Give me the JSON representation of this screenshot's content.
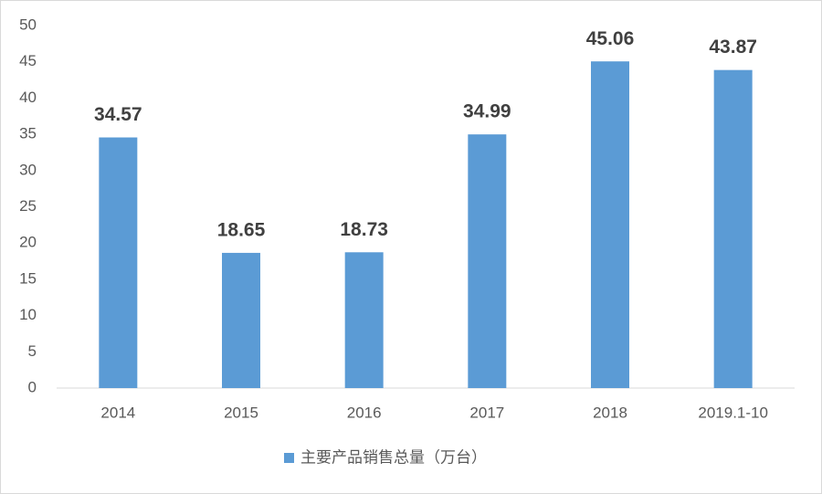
{
  "chart_data": {
    "type": "bar",
    "categories": [
      "2014",
      "2015",
      "2016",
      "2017",
      "2018",
      "2019.1-10"
    ],
    "series": [
      {
        "name": "主要产品销售总量（万台）",
        "color": "#5b9bd5",
        "values": [
          34.57,
          18.65,
          18.73,
          34.99,
          45.06,
          43.87
        ]
      }
    ],
    "ylim": [
      0,
      50
    ],
    "yticks": [
      0,
      5,
      10,
      15,
      20,
      25,
      30,
      35,
      40,
      45,
      50
    ],
    "grid": false,
    "legend": "bottom",
    "data_labels": true
  }
}
